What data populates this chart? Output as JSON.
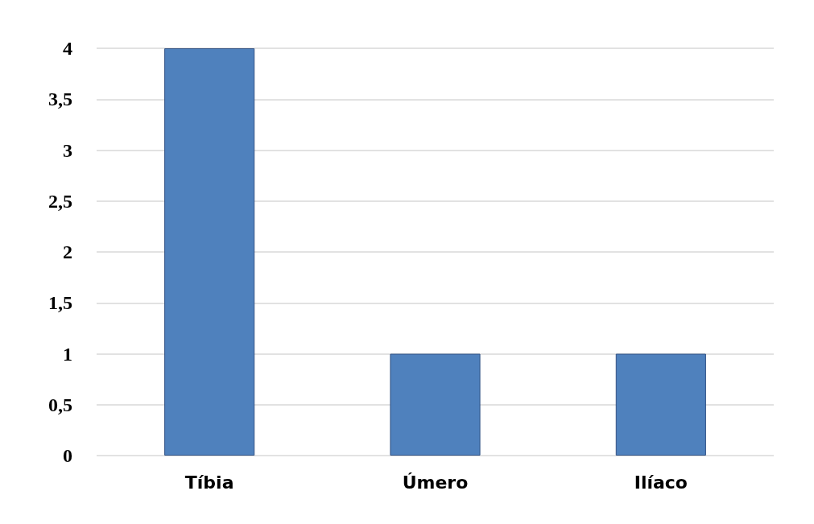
{
  "chart_data": {
    "type": "bar",
    "categories": [
      "Tíbia",
      "Úmero",
      "Ilíaco"
    ],
    "values": [
      4,
      1,
      1
    ],
    "color": "#4f81bd",
    "ylim": [
      0,
      4
    ],
    "yticks": [
      0,
      {
        "value": 0.5,
        "label": "0,5"
      },
      1,
      {
        "value": 1.5,
        "label": "1,5"
      },
      2,
      {
        "value": 2.5,
        "label": "2,5"
      },
      3,
      {
        "value": 3.5,
        "label": "3,5"
      },
      4
    ],
    "grid": "y"
  }
}
